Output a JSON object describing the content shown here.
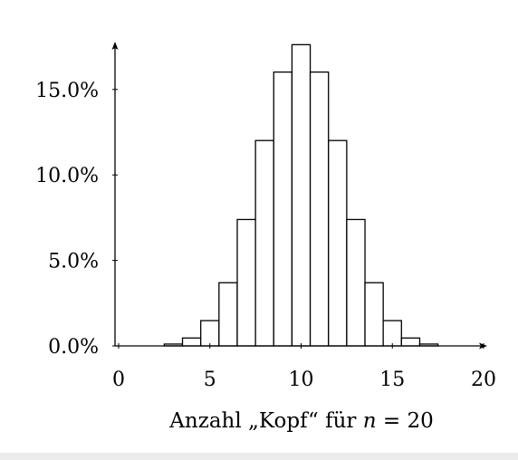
{
  "chart_data": {
    "type": "bar",
    "title": "",
    "xlabel_parts": {
      "prefix": "Anzahl „Kopf“ für ",
      "var": "n",
      "suffix": " = 20"
    },
    "ylabel": "",
    "xlim": [
      -0.5,
      20
    ],
    "ylim": [
      0,
      0.18
    ],
    "xticks": [
      0,
      5,
      10,
      15,
      20
    ],
    "xtick_labels": [
      "0",
      "5",
      "10",
      "15",
      "20"
    ],
    "yticks": [
      0,
      0.05,
      0.1,
      0.15
    ],
    "ytick_labels": [
      "0.0%",
      "5.0%",
      "10.0%",
      "15.0%"
    ],
    "grid": false,
    "legend": "none",
    "bar_width": 1,
    "x": [
      0,
      1,
      2,
      3,
      4,
      5,
      6,
      7,
      8,
      9,
      10,
      11,
      12,
      13,
      14,
      15,
      16,
      17,
      18,
      19,
      20
    ],
    "values": [
      1e-06,
      1.9e-05,
      0.000181,
      0.001087,
      0.004621,
      0.014786,
      0.036964,
      0.073929,
      0.120134,
      0.160179,
      0.176197,
      0.160179,
      0.120134,
      0.073929,
      0.036964,
      0.014786,
      0.004621,
      0.001087,
      0.000181,
      1.9e-05,
      1e-06
    ],
    "colors": {
      "bar_fill": "#ffffff",
      "bar_stroke": "#000000",
      "axis": "#000000"
    }
  }
}
